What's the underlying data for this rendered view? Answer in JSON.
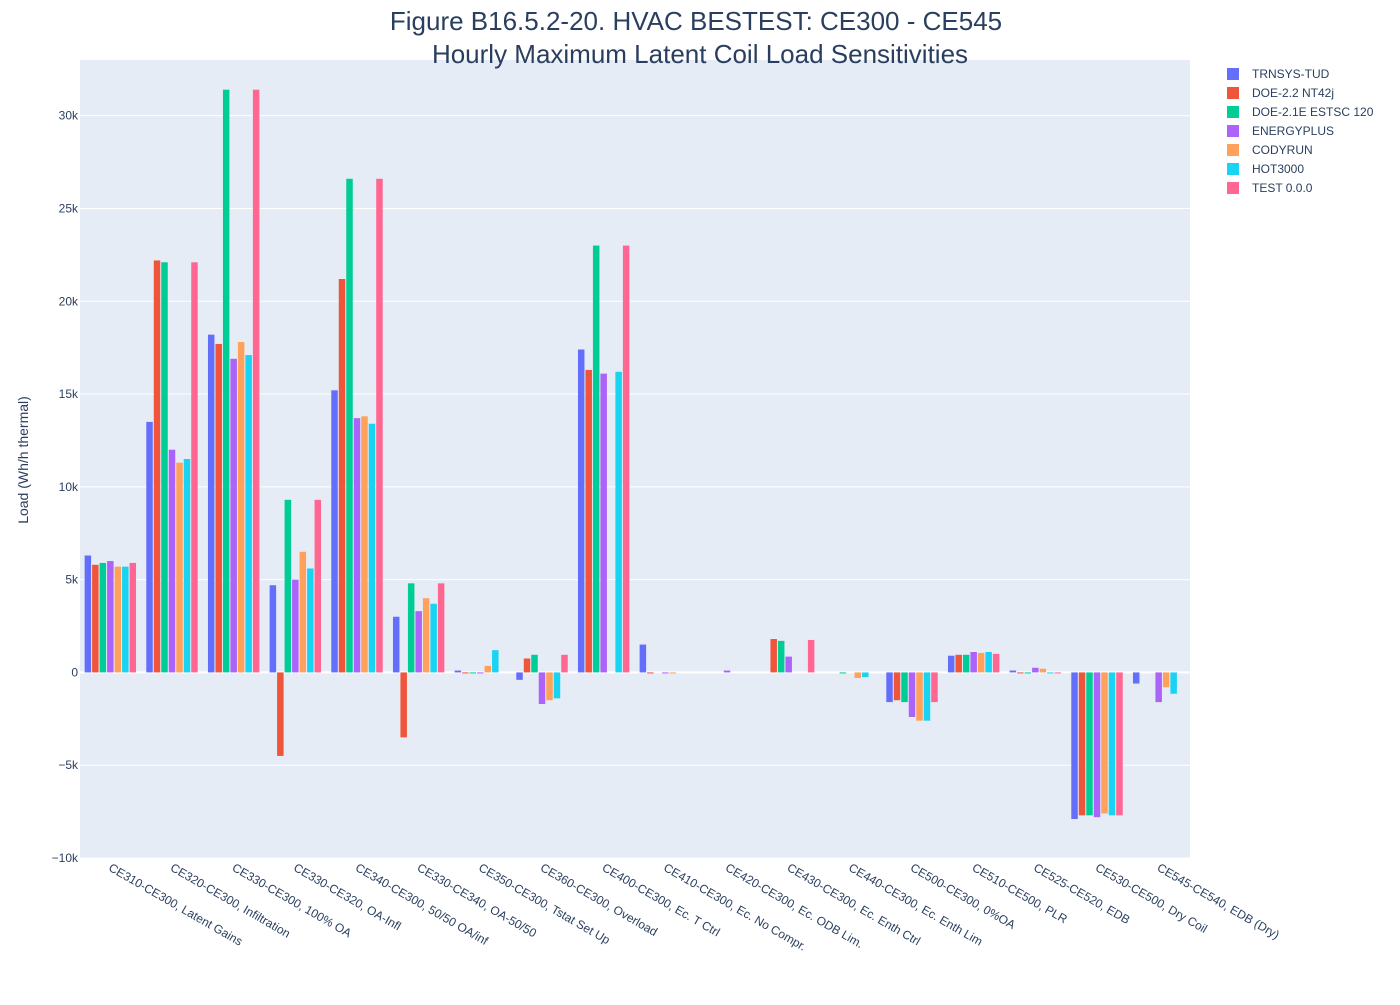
{
  "chart_data": {
    "type": "bar",
    "title": "Figure B16.5.2-20. HVAC BESTEST: CE300 - CE545",
    "subtitle": "Hourly Maximum Latent Coil Load Sensitivities",
    "xlabel": "",
    "ylabel": "Load (Wh/h thermal)",
    "ylim": [
      -10000,
      33000
    ],
    "yticks": [
      -10000,
      -5000,
      0,
      5000,
      10000,
      15000,
      20000,
      25000,
      30000
    ],
    "ytick_labels": [
      "−10k",
      "−5k",
      "0",
      "5k",
      "10k",
      "15k",
      "20k",
      "25k",
      "30k"
    ],
    "grid": true,
    "legend_position": "top-right",
    "categories": [
      "CE310-CE300, Latent Gains",
      "CE320-CE300, Infiltration",
      "CE330-CE300, 100% OA",
      "CE330-CE320, OA-Infl",
      "CE340-CE300, 50/50 OA/inf",
      "CE330-CE340, OA-50/50",
      "CE350-CE300, Tstat Set Up",
      "CE360-CE300, Overload",
      "CE400-CE300, Ec. T Ctrl",
      "CE410-CE300, Ec. No Compr.",
      "CE420-CE300, Ec. ODB Lim.",
      "CE430-CE300, Ec. Enth Ctrl",
      "CE440-CE300, Ec. Enth Lim",
      "CE500-CE300, 0%OA",
      "CE510-CE500, PLR",
      "CE525-CE520, EDB",
      "CE530-CE500, Dry Coil",
      "CE545-CE540, EDB (Dry)"
    ],
    "series": [
      {
        "name": "TRNSYS-TUD",
        "color": "#636efa",
        "values": [
          6300,
          13500,
          18200,
          4700,
          15200,
          3000,
          100,
          -400,
          17400,
          1500,
          0,
          0,
          0,
          -1600,
          900,
          100,
          -7900,
          -600
        ]
      },
      {
        "name": "DOE-2.2 NT42j",
        "color": "#ef553b",
        "values": [
          5800,
          22200,
          17700,
          -4500,
          21200,
          -3500,
          -50,
          750,
          16300,
          -30,
          0,
          1800,
          0,
          -1500,
          950,
          -50,
          -7700,
          0
        ]
      },
      {
        "name": "DOE-2.1E ESTSC 120",
        "color": "#00cc96",
        "values": [
          5900,
          22100,
          31400,
          9300,
          26600,
          4800,
          -50,
          950,
          23000,
          0,
          0,
          1700,
          -20,
          -1600,
          950,
          -50,
          -7700,
          0
        ]
      },
      {
        "name": "ENERGYPLUS",
        "color": "#ab63fa",
        "values": [
          6000,
          12000,
          16900,
          5000,
          13700,
          3300,
          -50,
          -1700,
          16100,
          -30,
          100,
          850,
          0,
          -2400,
          1100,
          250,
          -7800,
          -1600
        ]
      },
      {
        "name": "CODYRUN",
        "color": "#ffa15a",
        "values": [
          5700,
          11300,
          17800,
          6500,
          13800,
          4000,
          350,
          -1500,
          0,
          -30,
          0,
          0,
          -300,
          -2600,
          1050,
          200,
          -7600,
          -800
        ]
      },
      {
        "name": "HOT3000",
        "color": "#19d3f3",
        "values": [
          5700,
          11500,
          17100,
          5600,
          13400,
          3700,
          1200,
          -1400,
          16200,
          0,
          0,
          0,
          -250,
          -2600,
          1100,
          -50,
          -7700,
          -1150
        ]
      },
      {
        "name": "TEST 0.0.0",
        "color": "#ff6692",
        "values": [
          5900,
          22100,
          31400,
          9300,
          26600,
          4800,
          0,
          950,
          23000,
          0,
          0,
          1750,
          0,
          -1600,
          1000,
          -50,
          -7700,
          0
        ]
      }
    ]
  }
}
